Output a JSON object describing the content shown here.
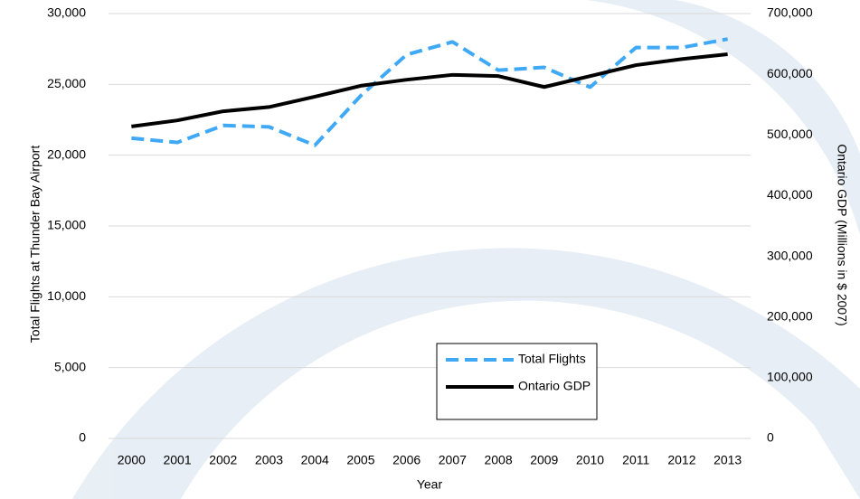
{
  "chart_data": {
    "type": "line",
    "x_label": "Year",
    "y_label": "Total Flights at Thunder Bay Airport",
    "y2_label": "Ontario GDP (Millions in $ 2007)",
    "categories": [
      "2000",
      "2001",
      "2002",
      "2003",
      "2004",
      "2005",
      "2006",
      "2007",
      "2008",
      "2009",
      "2010",
      "2011",
      "2012",
      "2013"
    ],
    "series": [
      {
        "name": "Total Flights",
        "color": "#3fa9f5",
        "dashed": true,
        "values": [
          21200,
          20900,
          22100,
          22000,
          20700,
          24200,
          27100,
          28000,
          26000,
          26200,
          24800,
          27600,
          27600,
          28200
        ]
      },
      {
        "name": "Ontario GDP",
        "color": "#000000",
        "axis": "y2",
        "values": [
          514000,
          524000,
          539000,
          546000,
          563000,
          581000,
          591000,
          599000,
          597000,
          579000,
          597000,
          615000,
          625000,
          633000
        ]
      }
    ],
    "ylim": [
      0,
      30000
    ],
    "yticks": [
      0,
      {
        "value": 5000,
        "label": "5,000"
      },
      {
        "value": 10000,
        "label": "10,000"
      },
      {
        "value": 15000,
        "label": "15,000"
      },
      {
        "value": 20000,
        "label": "20,000"
      },
      {
        "value": 25000,
        "label": "25,000"
      },
      {
        "value": 30000,
        "label": "30,000"
      }
    ],
    "y2lim": [
      0,
      700000
    ],
    "y2ticks": [
      0,
      {
        "value": 100000,
        "label": "100,000"
      },
      {
        "value": 200000,
        "label": "200,000"
      },
      {
        "value": 300000,
        "label": "300,000"
      },
      {
        "value": 400000,
        "label": "400,000"
      },
      {
        "value": 500000,
        "label": "500,000"
      },
      {
        "value": 600000,
        "label": "600,000"
      },
      {
        "value": 700000,
        "label": "700,000"
      }
    ],
    "grid": true
  }
}
